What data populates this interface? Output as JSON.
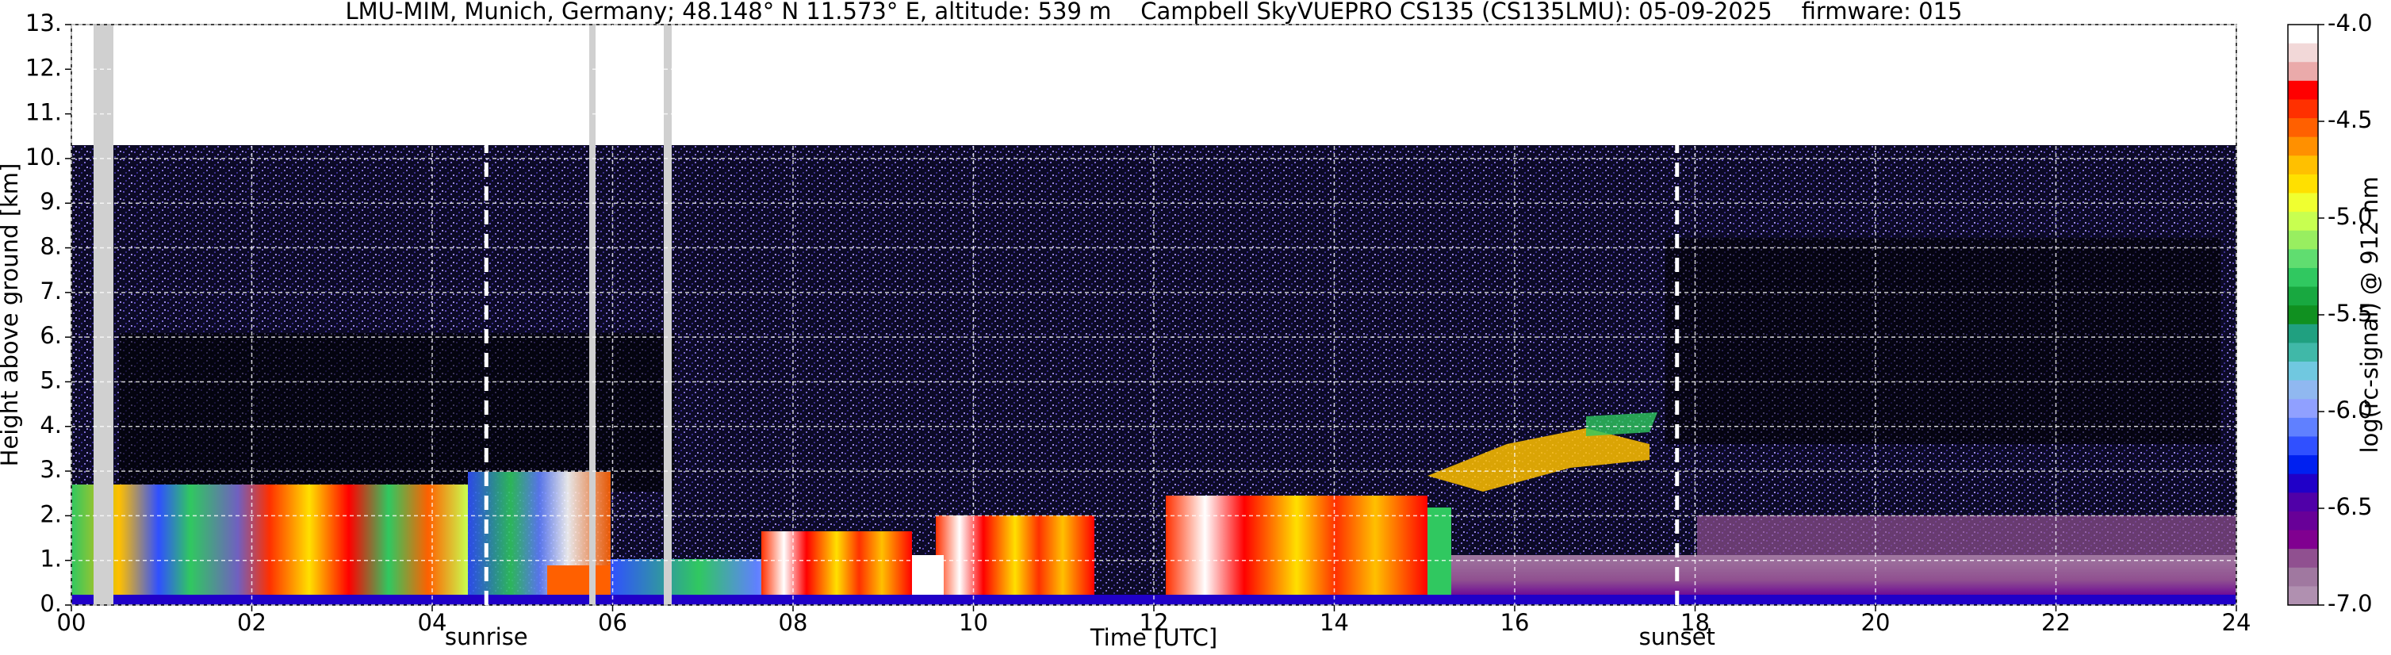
{
  "chart_data": {
    "type": "heatmap",
    "title": "LMU-MIM, Munich, Germany; 48.148° N 11.573° E, altitude: 539 m    Campbell SkyVUEPRO CS135 (CS135LMU): 05-09-2025    firmware: 015",
    "xlabel": "Time [UTC]",
    "ylabel": "Height above ground [km]",
    "xlim": [
      0,
      24
    ],
    "xticks": [
      {
        "value": 0,
        "label": "00"
      },
      {
        "value": 2,
        "label": "02"
      },
      {
        "value": 4,
        "label": "04"
      },
      {
        "value": 6,
        "label": "06"
      },
      {
        "value": 8,
        "label": "08"
      },
      {
        "value": 10,
        "label": "10"
      },
      {
        "value": 12,
        "label": "12"
      },
      {
        "value": 14,
        "label": "14"
      },
      {
        "value": 16,
        "label": "16"
      },
      {
        "value": 18,
        "label": "18"
      },
      {
        "value": 20,
        "label": "20"
      },
      {
        "value": 22,
        "label": "22"
      },
      {
        "value": 24,
        "label": "24"
      }
    ],
    "ylim": [
      0,
      13
    ],
    "yticks": [
      {
        "value": 0,
        "label": "0."
      },
      {
        "value": 1,
        "label": "1."
      },
      {
        "value": 2,
        "label": "2."
      },
      {
        "value": 3,
        "label": "3."
      },
      {
        "value": 4,
        "label": "4."
      },
      {
        "value": 5,
        "label": "5."
      },
      {
        "value": 6,
        "label": "6."
      },
      {
        "value": 7,
        "label": "7."
      },
      {
        "value": 8,
        "label": "8."
      },
      {
        "value": 9,
        "label": "9."
      },
      {
        "value": 10,
        "label": "10."
      },
      {
        "value": 11,
        "label": "11."
      },
      {
        "value": 12,
        "label": "12."
      },
      {
        "value": 13,
        "label": "13."
      }
    ],
    "grid": true,
    "colorbar": {
      "label": "log(rc-signal) @ 912 nm",
      "lim": [
        -7,
        -4
      ],
      "ticks": [
        {
          "value": -4,
          "label": "-4.0"
        },
        -4.5,
        {
          "value": -5,
          "label": "-5.0"
        },
        -5.5,
        {
          "value": -6,
          "label": "-6.0"
        },
        -6.5,
        {
          "value": -7,
          "label": "-7.0"
        }
      ],
      "colors": [
        "#ffffff",
        "#f2d8d8",
        "#eaaaaa",
        "#ff0000",
        "#ff3000",
        "#ff6000",
        "#ff9000",
        "#ffc000",
        "#ffe000",
        "#f0ff30",
        "#c8ff50",
        "#98ee60",
        "#60dd70",
        "#30c860",
        "#18a840",
        "#109020",
        "#20a080",
        "#40b8a8",
        "#70c8e0",
        "#90b8f0",
        "#90a0ff",
        "#6080ff",
        "#3050ff",
        "#0020f0",
        "#2000c8",
        "#5000a8",
        "#680098",
        "#800090",
        "#905090",
        "#a078a0",
        "#b090b0"
      ]
    },
    "annotations": [
      {
        "text": "sunrise",
        "x": 4.6
      },
      {
        "text": "sunset",
        "x": 17.8
      }
    ]
  }
}
